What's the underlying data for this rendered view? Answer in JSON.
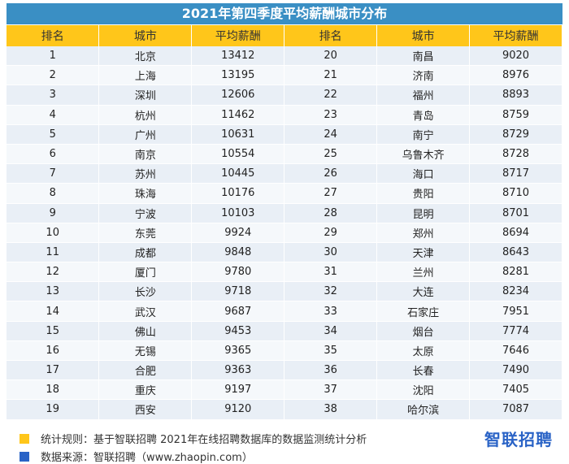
{
  "title": "2021年第四季度平均薪酬城市分布",
  "chart_data": {
    "type": "table",
    "headers": [
      "排名",
      "城市",
      "平均薪酬",
      "排名",
      "城市",
      "平均薪酬"
    ],
    "rows": [
      [
        1,
        "北京",
        13412
      ],
      [
        2,
        "上海",
        13195
      ],
      [
        3,
        "深圳",
        12606
      ],
      [
        4,
        "杭州",
        11462
      ],
      [
        5,
        "广州",
        10631
      ],
      [
        6,
        "南京",
        10554
      ],
      [
        7,
        "苏州",
        10445
      ],
      [
        8,
        "珠海",
        10176
      ],
      [
        9,
        "宁波",
        10103
      ],
      [
        10,
        "东莞",
        9924
      ],
      [
        11,
        "成都",
        9848
      ],
      [
        12,
        "厦门",
        9780
      ],
      [
        13,
        "长沙",
        9718
      ],
      [
        14,
        "武汉",
        9687
      ],
      [
        15,
        "佛山",
        9453
      ],
      [
        16,
        "无锡",
        9365
      ],
      [
        17,
        "合肥",
        9363
      ],
      [
        18,
        "重庆",
        9197
      ],
      [
        19,
        "西安",
        9120
      ],
      [
        20,
        "南昌",
        9020
      ],
      [
        21,
        "济南",
        8976
      ],
      [
        22,
        "福州",
        8893
      ],
      [
        23,
        "青岛",
        8759
      ],
      [
        24,
        "南宁",
        8729
      ],
      [
        25,
        "乌鲁木齐",
        8728
      ],
      [
        26,
        "海口",
        8717
      ],
      [
        27,
        "贵阳",
        8710
      ],
      [
        28,
        "昆明",
        8701
      ],
      [
        29,
        "郑州",
        8694
      ],
      [
        30,
        "天津",
        8643
      ],
      [
        31,
        "兰州",
        8281
      ],
      [
        32,
        "大连",
        8234
      ],
      [
        33,
        "石家庄",
        7951
      ],
      [
        34,
        "烟台",
        7774
      ],
      [
        35,
        "太原",
        7646
      ],
      [
        36,
        "长春",
        7490
      ],
      [
        37,
        "沈阳",
        7405
      ],
      [
        38,
        "哈尔滨",
        7087
      ]
    ]
  },
  "footer": {
    "rule_text": "统计规则：基于智联招聘 2021年在线招聘数据库的数据监测统计分析",
    "source_text": "数据来源：智联招聘（www.zhaopin.com）"
  },
  "brand": "智联招聘",
  "colors": {
    "title_bg": "#3a8fc4",
    "header_bg": "#ffc61a",
    "row_odd": "#e9eff6",
    "row_even": "#f5f8fb",
    "bullet_rule": "#ffc61a",
    "bullet_source": "#2a63c6",
    "brand": "#2a63c6"
  }
}
